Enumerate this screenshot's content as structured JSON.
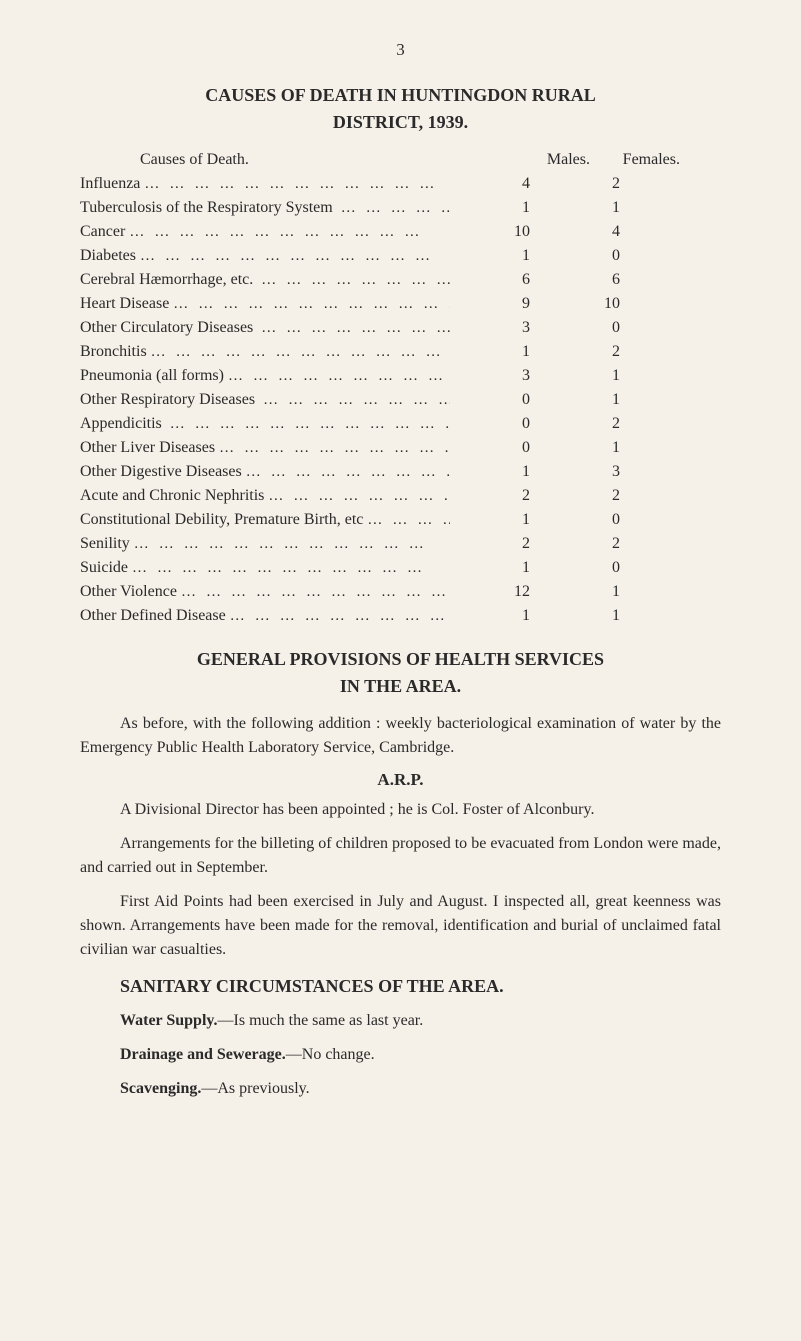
{
  "page_number": "3",
  "title_line1": "CAUSES OF DEATH IN HUNTINGDON RURAL",
  "title_line2": "DISTRICT, 1939.",
  "table": {
    "header": {
      "cause": "Causes of Death.",
      "males": "Males.",
      "females": "Females."
    },
    "rows": [
      {
        "cause": "Influenza",
        "males": "4",
        "females": "2"
      },
      {
        "cause": "Tuberculosis of the Respiratory System ",
        "males": "1",
        "females": "1"
      },
      {
        "cause": "Cancer",
        "males": "10",
        "females": "4"
      },
      {
        "cause": "Diabetes",
        "males": "1",
        "females": "0"
      },
      {
        "cause": "Cerebral Hæmorrhage, etc. ",
        "males": "6",
        "females": "6"
      },
      {
        "cause": "Heart Disease",
        "males": "9",
        "females": "10"
      },
      {
        "cause": "Other Circulatory Diseases ",
        "males": "3",
        "females": "0"
      },
      {
        "cause": "Bronchitis",
        "males": "1",
        "females": "2"
      },
      {
        "cause": "Pneumonia (all forms)",
        "males": "3",
        "females": "1"
      },
      {
        "cause": "Other Respiratory Diseases ",
        "males": "0",
        "females": "1"
      },
      {
        "cause": "Appendicitis ",
        "males": "0",
        "females": "2"
      },
      {
        "cause": "Other Liver Diseases",
        "males": "0",
        "females": "1"
      },
      {
        "cause": "Other Digestive Diseases",
        "males": "1",
        "females": "3"
      },
      {
        "cause": "Acute and Chronic Nephritis",
        "males": "2",
        "females": "2"
      },
      {
        "cause": "Constitutional Debility, Premature Birth, etc",
        "males": "1",
        "females": "0"
      },
      {
        "cause": "Senility",
        "males": "2",
        "females": "2"
      },
      {
        "cause": "Suicide",
        "males": "1",
        "females": "0"
      },
      {
        "cause": "Other Violence",
        "males": "12",
        "females": "1"
      },
      {
        "cause": "Other Defined Disease",
        "males": "1",
        "females": "1"
      }
    ]
  },
  "section2": {
    "title_line1": "GENERAL PROVISIONS OF HEALTH SERVICES",
    "title_line2": "IN THE AREA.",
    "para1": "As before, with the following addition : weekly bacteriological examination of water by the Emergency Public Health Laboratory Service, Cambridge.",
    "arp_heading": "A.R.P.",
    "para2": "A Divisional Director has been appointed ; he is Col. Foster of Alconbury.",
    "para3": "Arrangements for the billeting of children proposed to be evacuated from London were made, and carried out in September.",
    "para4": "First Aid Points had been exercised in July and August. I inspected all, great keenness was shown. Arrangements have been made for the removal, identification and burial of unclaimed fatal civilian war casualties."
  },
  "section3": {
    "title": "SANITARY CIRCUMSTANCES OF THE AREA.",
    "water_label": "Water Supply.",
    "water_text": "—Is much the same as last year.",
    "drainage_label": "Drainage and Sewerage.",
    "drainage_text": "—No change.",
    "scavenging_label": "Scavenging.",
    "scavenging_text": "—As previously."
  }
}
